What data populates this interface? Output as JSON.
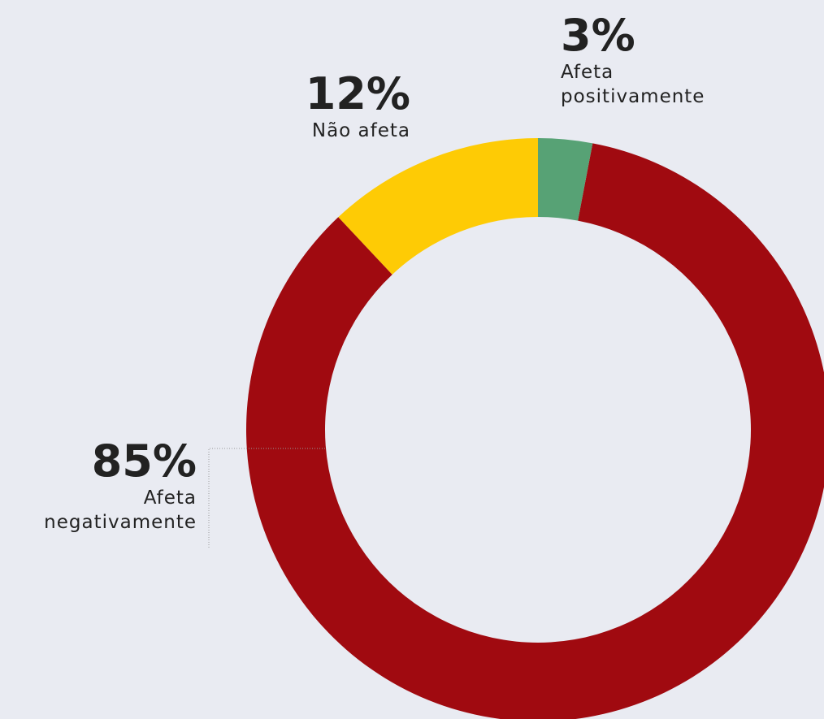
{
  "chart_data": {
    "type": "donut",
    "categories": [
      "Afeta positivamente",
      "Afeta negativamente",
      "Não afeta"
    ],
    "values": [
      3,
      85,
      12
    ],
    "value_labels": [
      "3%",
      "85%",
      "12%"
    ],
    "colors": [
      "#57a275",
      "#a00a10",
      "#fecb05"
    ]
  }
}
